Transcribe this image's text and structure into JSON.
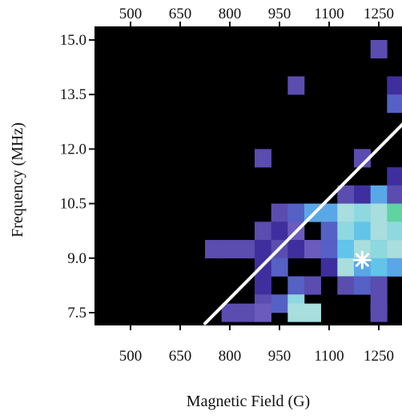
{
  "chart_data": {
    "type": "heatmap",
    "title": "",
    "xlabel": "Magnetic Field (G)",
    "ylabel": "Frequency (MHz)",
    "x_ticks": [
      500,
      650,
      800,
      950,
      1100,
      1250
    ],
    "y_ticks": [
      "7.5",
      "9.0",
      "10.5",
      "12.0",
      "13.5",
      "15.0"
    ],
    "xlim": [
      350,
      1400
    ],
    "ylim": [
      7.2,
      15.5
    ],
    "x_tick_positions": [
      "top",
      "bottom"
    ],
    "bin_width_gauss": 50,
    "bin_height_mhz": 0.5,
    "background_color": "#000000",
    "colors": {
      "dark_purple": "#3f2f9e",
      "purple": "#5b4cb0",
      "mid_purple": "#6a5bbd",
      "blue_purple": "#5561c4",
      "blue": "#5aa7e8",
      "light_blue": "#63c4ea",
      "cyan": "#8ed8e0",
      "pale_cyan": "#a8dedd",
      "green": "#4cc88a",
      "green_light": "#5fd3a0",
      "line": "#ffffff"
    },
    "cells": [
      {
        "x": 1250,
        "y": 14.75,
        "color": "purple"
      },
      {
        "x": 1000,
        "y": 13.75,
        "color": "purple"
      },
      {
        "x": 1300,
        "y": 13.75,
        "color": "dark_purple"
      },
      {
        "x": 1350,
        "y": 13.75,
        "color": "purple"
      },
      {
        "x": 1300,
        "y": 13.25,
        "color": "blue_purple"
      },
      {
        "x": 1350,
        "y": 13.25,
        "color": "blue"
      },
      {
        "x": 900,
        "y": 11.75,
        "color": "purple"
      },
      {
        "x": 1200,
        "y": 11.75,
        "color": "purple"
      },
      {
        "x": 1300,
        "y": 11.25,
        "color": "dark_purple"
      },
      {
        "x": 1150,
        "y": 10.75,
        "color": "purple"
      },
      {
        "x": 1200,
        "y": 10.75,
        "color": "dark_purple"
      },
      {
        "x": 1250,
        "y": 10.75,
        "color": "blue"
      },
      {
        "x": 1300,
        "y": 10.75,
        "color": "purple"
      },
      {
        "x": 1350,
        "y": 10.75,
        "color": "purple"
      },
      {
        "x": 950,
        "y": 10.25,
        "color": "purple"
      },
      {
        "x": 1000,
        "y": 10.25,
        "color": "blue_purple"
      },
      {
        "x": 1050,
        "y": 10.25,
        "color": "blue"
      },
      {
        "x": 1100,
        "y": 10.25,
        "color": "blue"
      },
      {
        "x": 1150,
        "y": 10.25,
        "color": "pale_cyan"
      },
      {
        "x": 1200,
        "y": 10.25,
        "color": "cyan"
      },
      {
        "x": 1250,
        "y": 10.25,
        "color": "pale_cyan"
      },
      {
        "x": 1300,
        "y": 10.25,
        "color": "green_light"
      },
      {
        "x": 1350,
        "y": 10.25,
        "color": "green"
      },
      {
        "x": 900,
        "y": 9.75,
        "color": "purple"
      },
      {
        "x": 950,
        "y": 9.75,
        "color": "dark_purple"
      },
      {
        "x": 1000,
        "y": 9.75,
        "color": "mid_purple"
      },
      {
        "x": 1100,
        "y": 9.75,
        "color": "blue_purple"
      },
      {
        "x": 1150,
        "y": 9.75,
        "color": "cyan"
      },
      {
        "x": 1200,
        "y": 9.75,
        "color": "light_blue"
      },
      {
        "x": 1250,
        "y": 9.75,
        "color": "pale_cyan"
      },
      {
        "x": 1300,
        "y": 9.75,
        "color": "cyan"
      },
      {
        "x": 1350,
        "y": 9.75,
        "color": "green_light"
      },
      {
        "x": 750,
        "y": 9.25,
        "color": "purple"
      },
      {
        "x": 800,
        "y": 9.25,
        "color": "purple"
      },
      {
        "x": 850,
        "y": 9.25,
        "color": "purple"
      },
      {
        "x": 900,
        "y": 9.25,
        "color": "dark_purple"
      },
      {
        "x": 950,
        "y": 9.25,
        "color": "purple"
      },
      {
        "x": 1000,
        "y": 9.25,
        "color": "dark_purple"
      },
      {
        "x": 1050,
        "y": 9.25,
        "color": "mid_purple"
      },
      {
        "x": 1100,
        "y": 9.25,
        "color": "blue_purple"
      },
      {
        "x": 1150,
        "y": 9.25,
        "color": "light_blue"
      },
      {
        "x": 1200,
        "y": 9.25,
        "color": "pale_cyan"
      },
      {
        "x": 1250,
        "y": 9.25,
        "color": "cyan"
      },
      {
        "x": 1300,
        "y": 9.25,
        "color": "pale_cyan"
      },
      {
        "x": 1350,
        "y": 9.25,
        "color": "green"
      },
      {
        "x": 900,
        "y": 8.75,
        "color": "dark_purple"
      },
      {
        "x": 950,
        "y": 8.75,
        "color": "blue_purple"
      },
      {
        "x": 1100,
        "y": 8.75,
        "color": "dark_purple"
      },
      {
        "x": 1150,
        "y": 8.75,
        "color": "pale_cyan"
      },
      {
        "x": 1200,
        "y": 8.75,
        "color": "blue"
      },
      {
        "x": 1250,
        "y": 8.75,
        "color": "light_blue"
      },
      {
        "x": 1300,
        "y": 8.75,
        "color": "blue"
      },
      {
        "x": 1350,
        "y": 8.75,
        "color": "green_light"
      },
      {
        "x": 900,
        "y": 8.25,
        "color": "dark_purple"
      },
      {
        "x": 1000,
        "y": 8.25,
        "color": "blue_purple"
      },
      {
        "x": 1050,
        "y": 8.25,
        "color": "purple"
      },
      {
        "x": 1150,
        "y": 8.25,
        "color": "purple"
      },
      {
        "x": 1200,
        "y": 8.25,
        "color": "blue_purple"
      },
      {
        "x": 1250,
        "y": 8.25,
        "color": "purple"
      },
      {
        "x": 900,
        "y": 7.75,
        "color": "purple"
      },
      {
        "x": 950,
        "y": 7.75,
        "color": "blue_purple"
      },
      {
        "x": 1000,
        "y": 7.75,
        "color": "cyan"
      },
      {
        "x": 1250,
        "y": 7.75,
        "color": "purple"
      },
      {
        "x": 800,
        "y": 7.5,
        "color": "purple"
      },
      {
        "x": 850,
        "y": 7.5,
        "color": "purple"
      },
      {
        "x": 900,
        "y": 7.5,
        "color": "mid_purple"
      },
      {
        "x": 1000,
        "y": 7.5,
        "color": "pale_cyan"
      },
      {
        "x": 1050,
        "y": 7.5,
        "color": "pale_cyan"
      },
      {
        "x": 1250,
        "y": 7.5,
        "color": "purple"
      }
    ],
    "line": {
      "points": [
        [
          725,
          7.2
        ],
        [
          1400,
          13.4
        ]
      ],
      "color": "white"
    },
    "marker": {
      "x": 1200,
      "y": 8.95,
      "symbol": "asterisk",
      "color": "white"
    }
  }
}
